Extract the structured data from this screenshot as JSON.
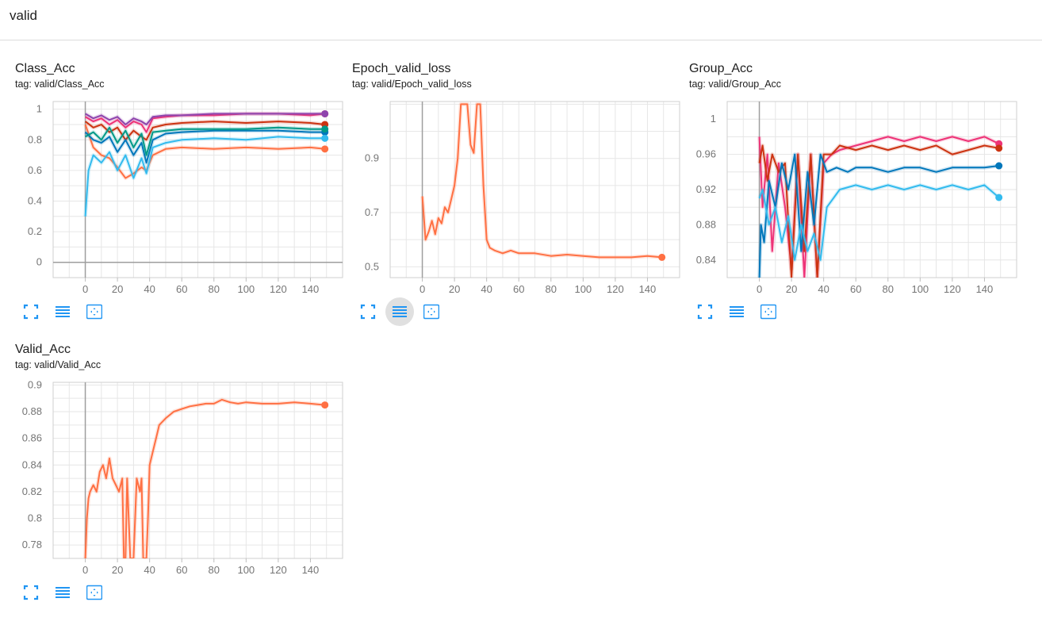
{
  "section": {
    "title": "valid"
  },
  "accent": "#2196f3",
  "cards": [
    {
      "title": "Class_Acc",
      "tag": "tag: valid/Class_Acc",
      "tools": [
        "fit-screen-icon",
        "list-icon",
        "data-range-icon"
      ],
      "active_tool": null
    },
    {
      "title": "Epoch_valid_loss",
      "tag": "tag: valid/Epoch_valid_loss",
      "tools": [
        "fit-screen-icon",
        "list-icon",
        "data-range-icon"
      ],
      "active_tool": 1
    },
    {
      "title": "Group_Acc",
      "tag": "tag: valid/Group_Acc",
      "tools": [
        "fit-screen-icon",
        "list-icon",
        "data-range-icon"
      ],
      "active_tool": null
    },
    {
      "title": "Valid_Acc",
      "tag": "tag: valid/Valid_Acc",
      "tools": [
        "fit-screen-icon",
        "list-icon",
        "data-range-icon"
      ],
      "active_tool": null
    }
  ],
  "chart_data": [
    {
      "type": "line",
      "title": "Class_Acc",
      "xlim": [
        -20,
        160
      ],
      "ylim": [
        -0.1,
        1.05
      ],
      "xticks": [
        0,
        20,
        40,
        60,
        80,
        100,
        120,
        140
      ],
      "yticks": [
        0,
        0.2,
        0.4,
        0.6,
        0.8,
        1
      ],
      "ytick_labels": [
        "0",
        "0.2",
        "0.4",
        "0.6",
        "0.8",
        "1"
      ],
      "series": [
        {
          "color": "#ff7043",
          "x": [
            0,
            5,
            10,
            15,
            20,
            25,
            30,
            35,
            38,
            42,
            50,
            60,
            80,
            100,
            120,
            140,
            149
          ],
          "y": [
            0.9,
            0.75,
            0.7,
            0.68,
            0.62,
            0.55,
            0.58,
            0.62,
            0.6,
            0.7,
            0.74,
            0.75,
            0.74,
            0.75,
            0.74,
            0.75,
            0.74
          ]
        },
        {
          "color": "#cc3311",
          "x": [
            0,
            5,
            10,
            15,
            20,
            25,
            30,
            35,
            38,
            42,
            50,
            60,
            80,
            100,
            120,
            140,
            149
          ],
          "y": [
            0.92,
            0.88,
            0.9,
            0.85,
            0.88,
            0.8,
            0.86,
            0.82,
            0.8,
            0.88,
            0.9,
            0.91,
            0.92,
            0.91,
            0.92,
            0.91,
            0.9
          ]
        },
        {
          "color": "#ee3377",
          "x": [
            0,
            5,
            10,
            15,
            20,
            25,
            30,
            35,
            38,
            42,
            50,
            60,
            80,
            100,
            120,
            140,
            149
          ],
          "y": [
            0.95,
            0.92,
            0.94,
            0.9,
            0.93,
            0.88,
            0.92,
            0.9,
            0.85,
            0.94,
            0.95,
            0.96,
            0.96,
            0.97,
            0.97,
            0.96,
            0.97
          ]
        },
        {
          "color": "#0077bb",
          "x": [
            0,
            5,
            10,
            15,
            20,
            25,
            30,
            35,
            38,
            42,
            50,
            60,
            80,
            100,
            120,
            140,
            149
          ],
          "y": [
            0.85,
            0.8,
            0.78,
            0.82,
            0.72,
            0.8,
            0.7,
            0.78,
            0.65,
            0.8,
            0.84,
            0.85,
            0.86,
            0.86,
            0.86,
            0.85,
            0.85
          ]
        },
        {
          "color": "#33bbee",
          "x": [
            0,
            2,
            5,
            10,
            15,
            20,
            25,
            30,
            35,
            38,
            42,
            50,
            60,
            80,
            100,
            120,
            140,
            149
          ],
          "y": [
            0.3,
            0.6,
            0.7,
            0.65,
            0.72,
            0.6,
            0.7,
            0.55,
            0.68,
            0.58,
            0.75,
            0.78,
            0.8,
            0.81,
            0.8,
            0.82,
            0.81,
            0.81
          ]
        },
        {
          "color": "#009988",
          "x": [
            0,
            5,
            10,
            15,
            20,
            25,
            30,
            35,
            38,
            42,
            50,
            60,
            80,
            100,
            120,
            140,
            149
          ],
          "y": [
            0.82,
            0.85,
            0.8,
            0.88,
            0.78,
            0.86,
            0.75,
            0.84,
            0.7,
            0.85,
            0.86,
            0.87,
            0.87,
            0.87,
            0.88,
            0.87,
            0.87
          ]
        },
        {
          "color": "#8e44ad",
          "x": [
            0,
            5,
            10,
            15,
            20,
            25,
            30,
            35,
            38,
            42,
            50,
            60,
            80,
            100,
            120,
            140,
            149
          ],
          "y": [
            0.97,
            0.94,
            0.96,
            0.93,
            0.95,
            0.9,
            0.94,
            0.92,
            0.9,
            0.95,
            0.96,
            0.96,
            0.97,
            0.97,
            0.97,
            0.97,
            0.97
          ]
        }
      ]
    },
    {
      "type": "line",
      "title": "Epoch_valid_loss",
      "xlim": [
        -20,
        160
      ],
      "ylim": [
        0.46,
        1.11
      ],
      "xticks": [
        0,
        20,
        40,
        60,
        80,
        100,
        120,
        140
      ],
      "yticks": [
        0.5,
        0.7,
        0.9
      ],
      "ytick_labels": [
        "0.5",
        "0.7",
        "0.9"
      ],
      "series": [
        {
          "color": "#ff7043",
          "x": [
            0,
            2,
            4,
            6,
            8,
            10,
            12,
            14,
            16,
            18,
            20,
            22,
            24,
            26,
            28,
            30,
            32,
            34,
            36,
            38,
            40,
            42,
            45,
            50,
            55,
            60,
            70,
            80,
            90,
            100,
            110,
            120,
            130,
            140,
            149
          ],
          "y": [
            0.76,
            0.6,
            0.63,
            0.67,
            0.62,
            0.68,
            0.66,
            0.72,
            0.7,
            0.75,
            0.8,
            0.9,
            1.1,
            1.1,
            1.1,
            0.95,
            0.92,
            1.1,
            1.1,
            0.8,
            0.6,
            0.57,
            0.56,
            0.55,
            0.56,
            0.55,
            0.55,
            0.54,
            0.545,
            0.54,
            0.535,
            0.535,
            0.535,
            0.54,
            0.535
          ]
        }
      ]
    },
    {
      "type": "line",
      "title": "Group_Acc",
      "xlim": [
        -20,
        160
      ],
      "ylim": [
        0.82,
        1.02
      ],
      "xticks": [
        0,
        20,
        40,
        60,
        80,
        100,
        120,
        140
      ],
      "yticks": [
        0.84,
        0.88,
        0.92,
        0.96,
        1
      ],
      "ytick_labels": [
        "0.84",
        "0.88",
        "0.92",
        "0.96",
        "1"
      ],
      "series": [
        {
          "color": "#ee3377",
          "x": [
            0,
            2,
            5,
            8,
            12,
            16,
            20,
            24,
            28,
            32,
            36,
            40,
            45,
            50,
            60,
            70,
            80,
            90,
            100,
            110,
            120,
            130,
            140,
            149
          ],
          "y": [
            0.98,
            0.9,
            0.96,
            0.85,
            0.95,
            0.9,
            0.83,
            0.96,
            0.82,
            0.96,
            0.82,
            0.95,
            0.96,
            0.965,
            0.97,
            0.975,
            0.98,
            0.975,
            0.98,
            0.975,
            0.98,
            0.975,
            0.98,
            0.972
          ]
        },
        {
          "color": "#cc3311",
          "x": [
            0,
            2,
            5,
            8,
            12,
            16,
            20,
            24,
            28,
            32,
            36,
            40,
            45,
            50,
            60,
            70,
            80,
            90,
            100,
            110,
            120,
            130,
            140,
            149
          ],
          "y": [
            0.95,
            0.97,
            0.93,
            0.96,
            0.94,
            0.95,
            0.82,
            0.96,
            0.85,
            0.96,
            0.82,
            0.96,
            0.96,
            0.97,
            0.965,
            0.97,
            0.965,
            0.97,
            0.965,
            0.97,
            0.96,
            0.965,
            0.97,
            0.967
          ]
        },
        {
          "color": "#0077bb",
          "x": [
            0,
            1,
            3,
            6,
            10,
            14,
            18,
            22,
            26,
            30,
            34,
            38,
            42,
            48,
            55,
            60,
            70,
            80,
            90,
            100,
            110,
            120,
            130,
            140,
            149
          ],
          "y": [
            0.82,
            0.88,
            0.86,
            0.93,
            0.9,
            0.95,
            0.92,
            0.96,
            0.85,
            0.94,
            0.88,
            0.96,
            0.94,
            0.945,
            0.94,
            0.945,
            0.945,
            0.94,
            0.945,
            0.945,
            0.94,
            0.945,
            0.945,
            0.945,
            0.947
          ]
        },
        {
          "color": "#33bbee",
          "x": [
            0,
            2,
            6,
            10,
            14,
            18,
            22,
            26,
            30,
            34,
            38,
            42,
            46,
            50,
            60,
            70,
            80,
            90,
            100,
            110,
            120,
            130,
            140,
            149
          ],
          "y": [
            0.91,
            0.92,
            0.88,
            0.9,
            0.86,
            0.89,
            0.84,
            0.88,
            0.85,
            0.87,
            0.84,
            0.9,
            0.91,
            0.92,
            0.925,
            0.92,
            0.925,
            0.92,
            0.925,
            0.92,
            0.925,
            0.92,
            0.925,
            0.911
          ]
        }
      ]
    },
    {
      "type": "line",
      "title": "Valid_Acc",
      "xlim": [
        -20,
        160
      ],
      "ylim": [
        0.77,
        0.902
      ],
      "xticks": [
        0,
        20,
        40,
        60,
        80,
        100,
        120,
        140
      ],
      "yticks": [
        0.78,
        0.8,
        0.82,
        0.84,
        0.86,
        0.88,
        0.9
      ],
      "ytick_labels": [
        "0.78",
        "0.8",
        "0.82",
        "0.84",
        "0.86",
        "0.88",
        "0.9"
      ],
      "series": [
        {
          "color": "#ff7043",
          "x": [
            0,
            1,
            2,
            3,
            5,
            7,
            9,
            11,
            13,
            15,
            17,
            19,
            21,
            23,
            24,
            25,
            26,
            28,
            30,
            32,
            34,
            35,
            36,
            38,
            39,
            40,
            42,
            44,
            46,
            50,
            55,
            60,
            65,
            70,
            75,
            80,
            85,
            90,
            95,
            100,
            110,
            120,
            130,
            140,
            149
          ],
          "y": [
            0.77,
            0.8,
            0.815,
            0.82,
            0.825,
            0.82,
            0.835,
            0.84,
            0.83,
            0.845,
            0.83,
            0.825,
            0.82,
            0.83,
            0.77,
            0.77,
            0.83,
            0.77,
            0.77,
            0.83,
            0.82,
            0.83,
            0.77,
            0.77,
            0.8,
            0.84,
            0.85,
            0.86,
            0.87,
            0.875,
            0.88,
            0.882,
            0.884,
            0.885,
            0.886,
            0.886,
            0.889,
            0.887,
            0.886,
            0.887,
            0.886,
            0.886,
            0.887,
            0.886,
            0.885
          ]
        }
      ]
    }
  ]
}
